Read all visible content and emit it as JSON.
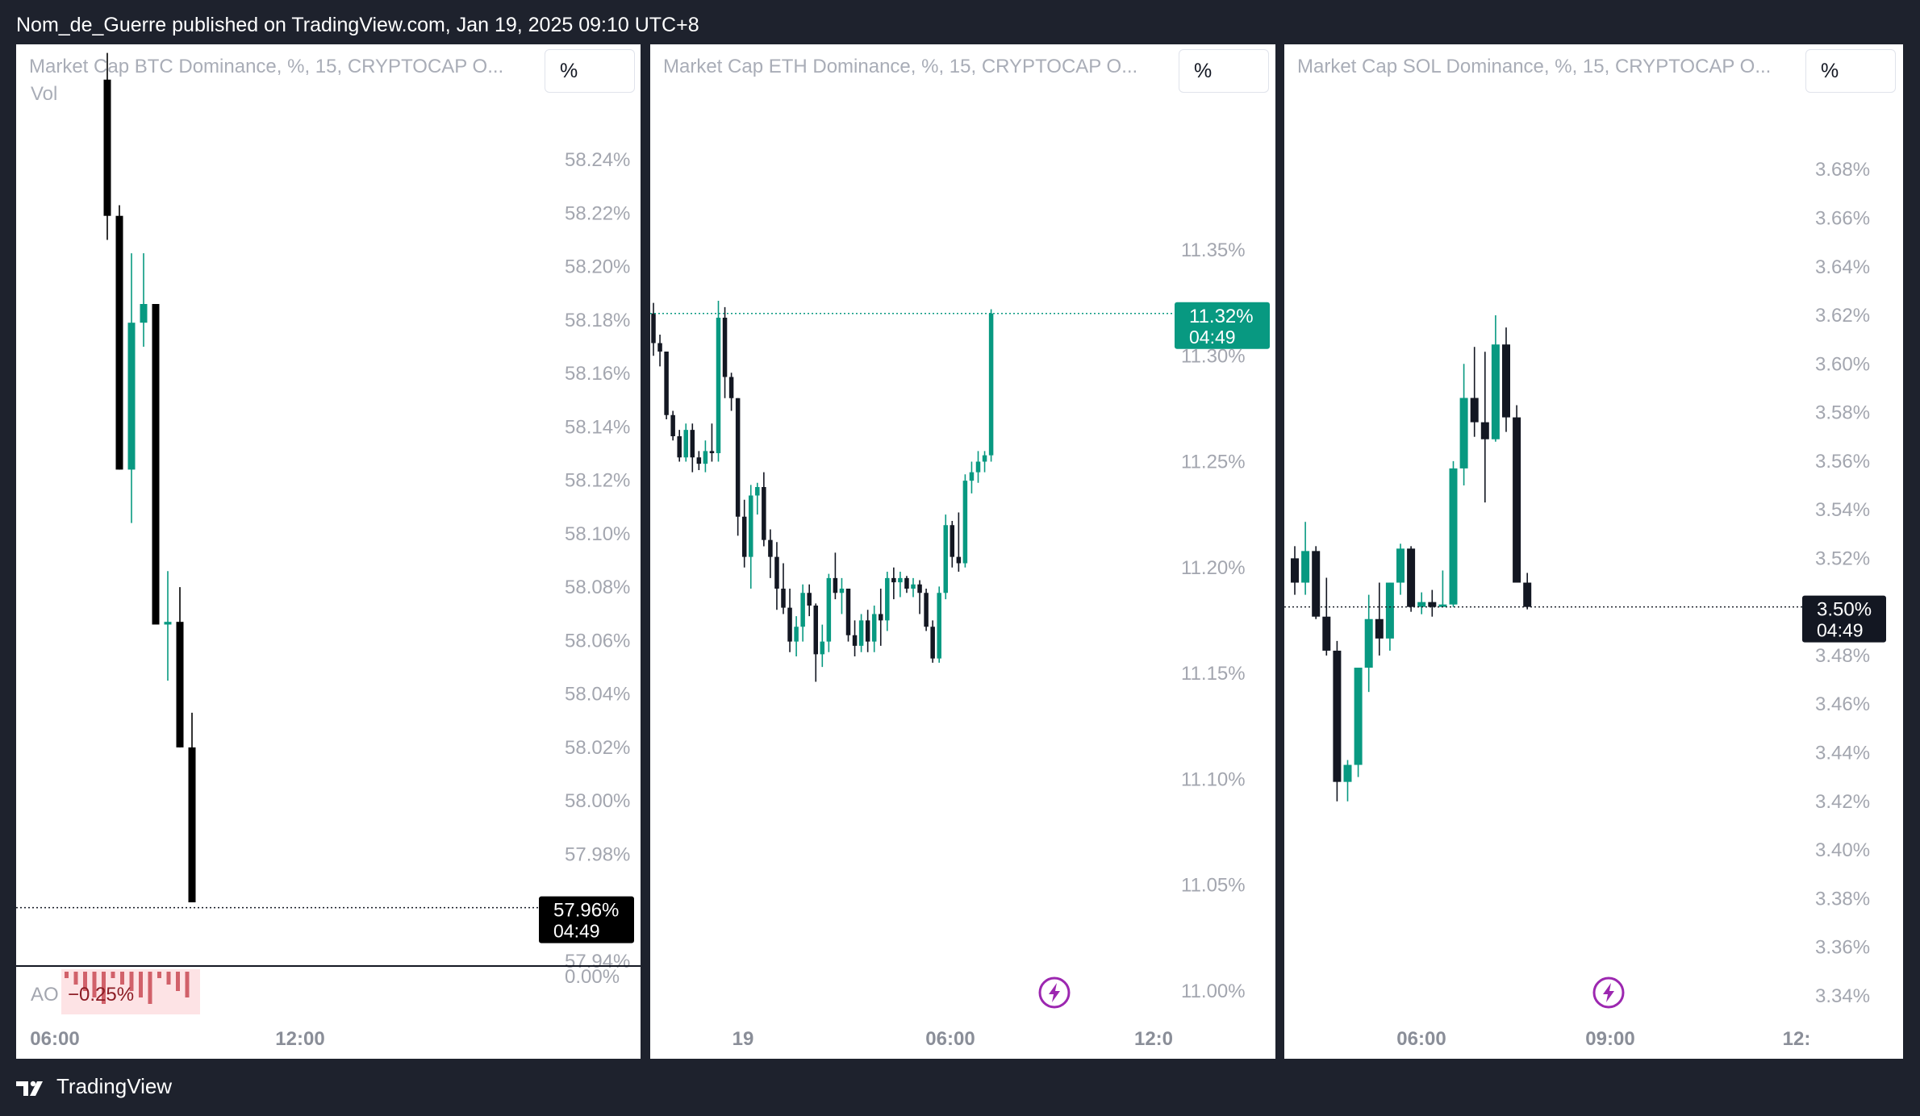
{
  "header": {
    "published": "Nom_de_Guerre published on TradingView.com, Jan 19, 2025 09:10 UTC+8"
  },
  "footer": {
    "brand": "TradingView"
  },
  "colors": {
    "up": "#089981",
    "down": "#131722",
    "price_tag_btc": "#000000",
    "price_tag_eth": "#089981",
    "price_tag_sol": "#131722",
    "ao_neg": "#f7525f",
    "lightning": "#9c27b0"
  },
  "chart_data": [
    {
      "type": "candlestick",
      "title": "Market Cap BTC Dominance, %, 15, CRYPTOCAP  O...",
      "indicator_label": "Vol",
      "scale_button": "%",
      "y_ticks": [
        "58.24%",
        "58.22%",
        "58.20%",
        "58.18%",
        "58.16%",
        "58.14%",
        "58.12%",
        "58.10%",
        "58.08%",
        "58.06%",
        "58.04%",
        "58.02%",
        "58.00%",
        "57.98%",
        "57.94%"
      ],
      "ylim": [
        57.93,
        58.25
      ],
      "x_ticks": [
        "06:00",
        "12:00"
      ],
      "last_price": {
        "value": 57.96,
        "label": "57.96%",
        "countdown": "04:49"
      },
      "sub_pane": {
        "name": "AO",
        "value_label": "−0.25%",
        "axis_label": "0.00%"
      },
      "candles": [
        {
          "o": 58.27,
          "h": 58.28,
          "l": 58.21,
          "c": 58.219
        },
        {
          "o": 58.219,
          "h": 58.223,
          "l": 58.124,
          "c": 58.124
        },
        {
          "o": 58.124,
          "h": 58.205,
          "l": 58.104,
          "c": 58.179
        },
        {
          "o": 58.179,
          "h": 58.205,
          "l": 58.17,
          "c": 58.186
        },
        {
          "o": 58.186,
          "h": 58.186,
          "l": 58.066,
          "c": 58.066
        },
        {
          "o": 58.066,
          "h": 58.086,
          "l": 58.045,
          "c": 58.067
        },
        {
          "o": 58.067,
          "h": 58.08,
          "l": 58.02,
          "c": 58.02
        },
        {
          "o": 58.02,
          "h": 58.033,
          "l": 57.962,
          "c": 57.962
        }
      ]
    },
    {
      "type": "candlestick",
      "title": "Market Cap ETH Dominance, %, 15, CRYPTOCAP  O...",
      "scale_button": "%",
      "y_ticks": [
        "11.35%",
        "11.30%",
        "11.25%",
        "11.20%",
        "11.15%",
        "11.10%",
        "11.05%",
        "11.00%"
      ],
      "ylim": [
        10.99,
        11.39
      ],
      "x_ticks": [
        "19",
        "06:00",
        "12:0"
      ],
      "last_price": {
        "value": 11.32,
        "label": "11.32%",
        "countdown": "04:49"
      },
      "candles": [
        {
          "o": 11.32,
          "h": 11.325,
          "l": 11.3,
          "c": 11.306
        },
        {
          "o": 11.306,
          "h": 11.31,
          "l": 11.295,
          "c": 11.302
        },
        {
          "o": 11.302,
          "h": 11.302,
          "l": 11.27,
          "c": 11.272
        },
        {
          "o": 11.272,
          "h": 11.274,
          "l": 11.26,
          "c": 11.262
        },
        {
          "o": 11.262,
          "h": 11.265,
          "l": 11.25,
          "c": 11.252
        },
        {
          "o": 11.252,
          "h": 11.268,
          "l": 11.25,
          "c": 11.265
        },
        {
          "o": 11.265,
          "h": 11.268,
          "l": 11.245,
          "c": 11.252
        },
        {
          "o": 11.252,
          "h": 11.255,
          "l": 11.246,
          "c": 11.249
        },
        {
          "o": 11.249,
          "h": 11.26,
          "l": 11.245,
          "c": 11.255
        },
        {
          "o": 11.255,
          "h": 11.268,
          "l": 11.25,
          "c": 11.254
        },
        {
          "o": 11.254,
          "h": 11.326,
          "l": 11.25,
          "c": 11.318
        },
        {
          "o": 11.318,
          "h": 11.323,
          "l": 11.28,
          "c": 11.29
        },
        {
          "o": 11.29,
          "h": 11.292,
          "l": 11.274,
          "c": 11.28
        },
        {
          "o": 11.28,
          "h": 11.28,
          "l": 11.215,
          "c": 11.224
        },
        {
          "o": 11.224,
          "h": 11.232,
          "l": 11.2,
          "c": 11.205
        },
        {
          "o": 11.205,
          "h": 11.239,
          "l": 11.19,
          "c": 11.234
        },
        {
          "o": 11.234,
          "h": 11.24,
          "l": 11.225,
          "c": 11.238
        },
        {
          "o": 11.238,
          "h": 11.245,
          "l": 11.21,
          "c": 11.213
        },
        {
          "o": 11.213,
          "h": 11.218,
          "l": 11.195,
          "c": 11.205
        },
        {
          "o": 11.205,
          "h": 11.212,
          "l": 11.18,
          "c": 11.19
        },
        {
          "o": 11.19,
          "h": 11.202,
          "l": 11.178,
          "c": 11.181
        },
        {
          "o": 11.181,
          "h": 11.19,
          "l": 11.16,
          "c": 11.165
        },
        {
          "o": 11.165,
          "h": 11.177,
          "l": 11.158,
          "c": 11.172
        },
        {
          "o": 11.172,
          "h": 11.192,
          "l": 11.165,
          "c": 11.188
        },
        {
          "o": 11.188,
          "h": 11.192,
          "l": 11.177,
          "c": 11.182
        },
        {
          "o": 11.182,
          "h": 11.183,
          "l": 11.146,
          "c": 11.159
        },
        {
          "o": 11.159,
          "h": 11.173,
          "l": 11.153,
          "c": 11.165
        },
        {
          "o": 11.165,
          "h": 11.197,
          "l": 11.16,
          "c": 11.195
        },
        {
          "o": 11.195,
          "h": 11.207,
          "l": 11.185,
          "c": 11.188
        },
        {
          "o": 11.188,
          "h": 11.195,
          "l": 11.178,
          "c": 11.19
        },
        {
          "o": 11.19,
          "h": 11.19,
          "l": 11.165,
          "c": 11.168
        },
        {
          "o": 11.168,
          "h": 11.175,
          "l": 11.158,
          "c": 11.163
        },
        {
          "o": 11.163,
          "h": 11.178,
          "l": 11.16,
          "c": 11.175
        },
        {
          "o": 11.175,
          "h": 11.18,
          "l": 11.16,
          "c": 11.165
        },
        {
          "o": 11.165,
          "h": 11.182,
          "l": 11.16,
          "c": 11.178
        },
        {
          "o": 11.178,
          "h": 11.19,
          "l": 11.163,
          "c": 11.175
        },
        {
          "o": 11.175,
          "h": 11.198,
          "l": 11.17,
          "c": 11.195
        },
        {
          "o": 11.195,
          "h": 11.2,
          "l": 11.185,
          "c": 11.193
        },
        {
          "o": 11.193,
          "h": 11.198,
          "l": 11.186,
          "c": 11.195
        },
        {
          "o": 11.195,
          "h": 11.196,
          "l": 11.188,
          "c": 11.19
        },
        {
          "o": 11.19,
          "h": 11.195,
          "l": 11.186,
          "c": 11.192
        },
        {
          "o": 11.192,
          "h": 11.194,
          "l": 11.178,
          "c": 11.188
        },
        {
          "o": 11.188,
          "h": 11.19,
          "l": 11.17,
          "c": 11.172
        },
        {
          "o": 11.172,
          "h": 11.175,
          "l": 11.155,
          "c": 11.157
        },
        {
          "o": 11.157,
          "h": 11.191,
          "l": 11.155,
          "c": 11.188
        },
        {
          "o": 11.188,
          "h": 11.225,
          "l": 11.185,
          "c": 11.22
        },
        {
          "o": 11.22,
          "h": 11.222,
          "l": 11.2,
          "c": 11.205
        },
        {
          "o": 11.205,
          "h": 11.226,
          "l": 11.198,
          "c": 11.202
        },
        {
          "o": 11.202,
          "h": 11.244,
          "l": 11.2,
          "c": 11.241
        },
        {
          "o": 11.241,
          "h": 11.25,
          "l": 11.235,
          "c": 11.245
        },
        {
          "o": 11.245,
          "h": 11.255,
          "l": 11.24,
          "c": 11.25
        },
        {
          "o": 11.25,
          "h": 11.255,
          "l": 11.245,
          "c": 11.253
        },
        {
          "o": 11.253,
          "h": 11.322,
          "l": 11.25,
          "c": 11.32
        }
      ]
    },
    {
      "type": "candlestick",
      "title": "Market Cap SOL Dominance, %, 15, CRYPTOCAP  O...",
      "scale_button": "%",
      "y_ticks": [
        "3.68%",
        "3.66%",
        "3.64%",
        "3.62%",
        "3.60%",
        "3.58%",
        "3.56%",
        "3.54%",
        "3.52%",
        "3.48%",
        "3.46%",
        "3.44%",
        "3.42%",
        "3.40%",
        "3.38%",
        "3.36%",
        "3.34%"
      ],
      "ylim": [
        3.33,
        3.695
      ],
      "x_ticks": [
        "06:00",
        "09:00",
        "12:"
      ],
      "last_price": {
        "value": 3.5,
        "label": "3.50%",
        "countdown": "04:49"
      },
      "candles": [
        {
          "o": 3.52,
          "h": 3.525,
          "l": 3.505,
          "c": 3.51
        },
        {
          "o": 3.51,
          "h": 3.535,
          "l": 3.505,
          "c": 3.523
        },
        {
          "o": 3.523,
          "h": 3.525,
          "l": 3.495,
          "c": 3.496
        },
        {
          "o": 3.496,
          "h": 3.512,
          "l": 3.48,
          "c": 3.482
        },
        {
          "o": 3.482,
          "h": 3.486,
          "l": 3.42,
          "c": 3.428
        },
        {
          "o": 3.428,
          "h": 3.437,
          "l": 3.42,
          "c": 3.435
        },
        {
          "o": 3.435,
          "h": 3.475,
          "l": 3.43,
          "c": 3.475
        },
        {
          "o": 3.475,
          "h": 3.505,
          "l": 3.465,
          "c": 3.495
        },
        {
          "o": 3.495,
          "h": 3.51,
          "l": 3.48,
          "c": 3.487
        },
        {
          "o": 3.487,
          "h": 3.51,
          "l": 3.482,
          "c": 3.51
        },
        {
          "o": 3.51,
          "h": 3.526,
          "l": 3.505,
          "c": 3.524
        },
        {
          "o": 3.524,
          "h": 3.525,
          "l": 3.498,
          "c": 3.5
        },
        {
          "o": 3.5,
          "h": 3.506,
          "l": 3.497,
          "c": 3.502
        },
        {
          "o": 3.502,
          "h": 3.507,
          "l": 3.496,
          "c": 3.5
        },
        {
          "o": 3.5,
          "h": 3.515,
          "l": 3.5,
          "c": 3.501
        },
        {
          "o": 3.501,
          "h": 3.56,
          "l": 3.5,
          "c": 3.557
        },
        {
          "o": 3.557,
          "h": 3.6,
          "l": 3.55,
          "c": 3.586
        },
        {
          "o": 3.586,
          "h": 3.607,
          "l": 3.57,
          "c": 3.576
        },
        {
          "o": 3.576,
          "h": 3.605,
          "l": 3.543,
          "c": 3.569
        },
        {
          "o": 3.569,
          "h": 3.62,
          "l": 3.568,
          "c": 3.608
        },
        {
          "o": 3.608,
          "h": 3.615,
          "l": 3.572,
          "c": 3.578
        },
        {
          "o": 3.578,
          "h": 3.583,
          "l": 3.51,
          "c": 3.51
        },
        {
          "o": 3.51,
          "h": 3.514,
          "l": 3.499,
          "c": 3.5
        }
      ]
    }
  ]
}
